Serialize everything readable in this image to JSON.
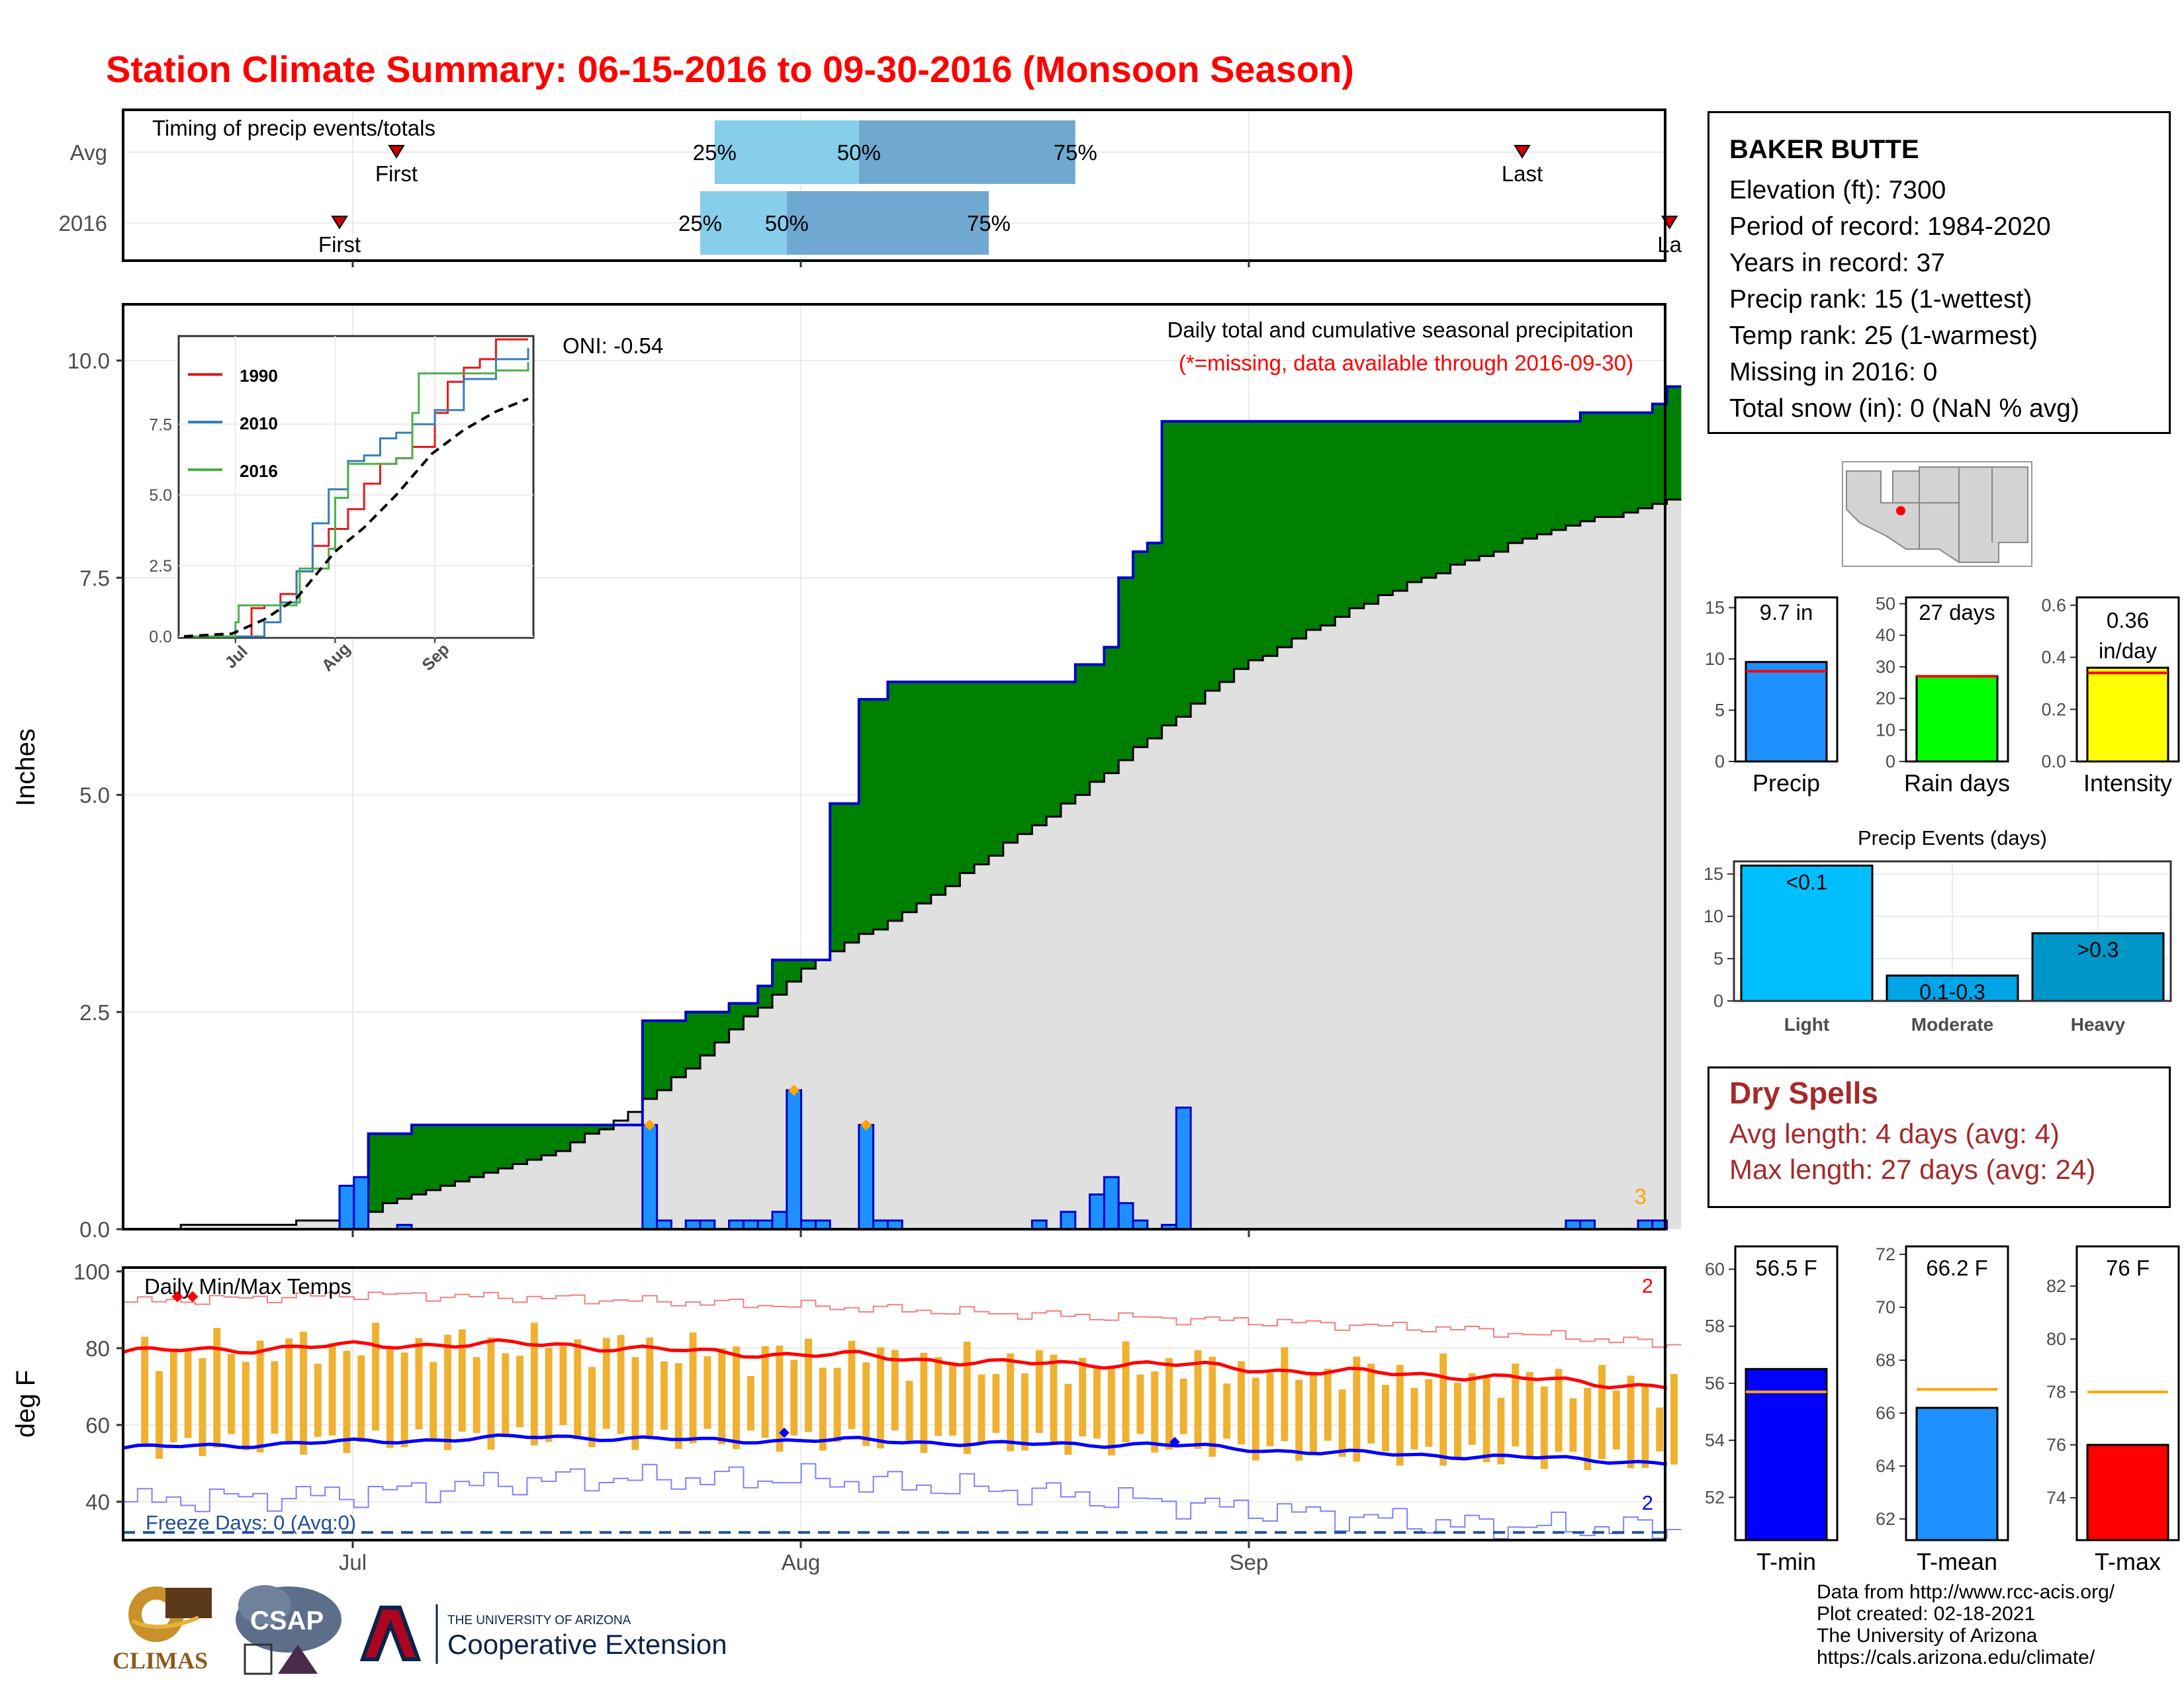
{
  "page": {
    "title": "Station Climate Summary: 06-15-2016 to 09-30-2016 (Monsoon Season)"
  },
  "station": {
    "name": "BAKER BUTTE",
    "lines": [
      "Elevation (ft): 7300",
      "Period of record: 1984-2020",
      "Years in record: 37",
      "Precip rank: 15 (1-wettest)",
      "Temp rank: 25 (1-warmest)",
      "Missing in 2016: 0",
      "Total snow (in): 0 (NaN % avg)"
    ]
  },
  "timing": {
    "heading": "Timing of precip events/totals",
    "rows": [
      {
        "label": "Avg",
        "first": "First",
        "last": "Last",
        "first_date": "2016-06-30",
        "last_date": "2016-09-23",
        "p25": "25%",
        "p50": "50%",
        "p75": "75%",
        "q25": "2016-07-26",
        "q50": "2016-08-05",
        "q75": "2016-08-20"
      },
      {
        "label": "2016",
        "first": "First",
        "last": "La",
        "first_date": "2016-06-30",
        "last_date": "2016-09-30",
        "p25": "25%",
        "p50": "50%",
        "p75": "75%",
        "q25": "2016-07-25",
        "q50": "2016-07-31",
        "q75": "2016-08-14"
      }
    ]
  },
  "precip_chart": {
    "title": "Daily total and cumulative seasonal precipitation",
    "subtitle": "(*=missing, data available through 2016-09-30)",
    "oni": "ONI: -0.54",
    "ylabel": "Inches",
    "yticks": [
      "0.0",
      "2.5",
      "5.0",
      "7.5",
      "10.0"
    ],
    "corner_note": "3",
    "colors": {
      "above_avg": "#008000",
      "below_avg": "#8b5a1a",
      "avg_fill": "#e0e0e0",
      "bars": "#1e90ff",
      "outline": "#0000cd"
    }
  },
  "inset": {
    "legend": [
      "1990",
      "2010",
      "2016"
    ],
    "colors": [
      "#e41a1c",
      "#377eb8",
      "#4daf4a"
    ],
    "yticks": [
      "0.0",
      "2.5",
      "5.0",
      "7.5"
    ],
    "xticks": [
      "Jul",
      "Aug",
      "Sep"
    ]
  },
  "temp_chart": {
    "title": "Daily Min/Max Temps",
    "ylabel": "deg F",
    "yticks": [
      "40",
      "60",
      "80",
      "100"
    ],
    "freeze": "Freeze Days: 0 (Avg:0)",
    "max_count": "2",
    "min_count": "2"
  },
  "x_axis": {
    "ticks": [
      "Jul",
      "Aug",
      "Sep"
    ]
  },
  "summary_bars": [
    {
      "label": "Precip",
      "value_text": "9.7 in",
      "ticks": [
        "0",
        "5",
        "10",
        "15"
      ],
      "color": "#1e90ff"
    },
    {
      "label": "Rain days",
      "value_text": "27 days",
      "ticks": [
        "0",
        "10",
        "20",
        "30",
        "40",
        "50"
      ],
      "color": "#00ff00"
    },
    {
      "label": "Intensity",
      "value_text": "0.36",
      "value_text2": "in/day",
      "ticks": [
        "0.0",
        "0.2",
        "0.4",
        "0.6"
      ],
      "color": "#ffff00"
    }
  ],
  "events": {
    "title": "Precip Events (days)",
    "categories": [
      "Light",
      "Moderate",
      "Heavy"
    ],
    "bar_labels": [
      "<0.1",
      "0.1-0.3",
      ">0.3"
    ],
    "ticks": [
      "0",
      "5",
      "10",
      "15"
    ],
    "colors": [
      "#00bfff",
      "#00a5e8",
      "#0096c8"
    ]
  },
  "dry_spells": {
    "heading": "Dry Spells",
    "avg": "Avg length: 4 days (avg: 4)",
    "max": "Max length: 27 days (avg: 24)"
  },
  "temp_bars": [
    {
      "label": "T-min",
      "value_text": "56.5 F",
      "ticks": [
        "52",
        "54",
        "56",
        "58",
        "60"
      ],
      "color": "#0000ff"
    },
    {
      "label": "T-mean",
      "value_text": "66.2 F",
      "ticks": [
        "62",
        "64",
        "66",
        "68",
        "70",
        "72"
      ],
      "color": "#1e90ff"
    },
    {
      "label": "T-max",
      "value_text": "76 F",
      "ticks": [
        "74",
        "76",
        "78",
        "80",
        "82"
      ],
      "color": "#ff0000"
    }
  ],
  "credits": [
    "Data from http://www.rcc-acis.org/",
    "Plot created: 02-18-2021",
    "The University of Arizona",
    "https://cals.arizona.edu/climate/"
  ],
  "logos": {
    "climas": "CLIMAS",
    "csap": "CSAP",
    "ua_small": "THE UNIVERSITY OF ARIZONA",
    "ua_big": "Cooperative Extension"
  },
  "chart_data": [
    {
      "type": "area",
      "name": "cumulative precipitation",
      "x_range": [
        "2016-06-15",
        "2016-09-30"
      ],
      "ylabel": "Inches",
      "ylim": [
        0,
        10.6
      ],
      "series": [
        {
          "name": "2016 cumulative",
          "x": [
            "2016-06-15",
            "2016-06-30",
            "2016-07-01",
            "2016-07-02",
            "2016-07-05",
            "2016-07-20",
            "2016-07-21",
            "2016-07-24",
            "2016-07-27",
            "2016-07-29",
            "2016-07-30",
            "2016-08-03",
            "2016-08-04",
            "2016-08-05",
            "2016-08-07",
            "2016-08-17",
            "2016-08-20",
            "2016-08-22",
            "2016-08-23",
            "2016-08-24",
            "2016-08-25",
            "2016-08-26",
            "2016-09-23",
            "2016-09-24",
            "2016-09-28",
            "2016-09-29",
            "2016-09-30"
          ],
          "values": [
            0.0,
            0.0,
            0.5,
            1.1,
            1.2,
            1.2,
            2.4,
            2.5,
            2.6,
            2.8,
            3.1,
            4.9,
            4.9,
            6.1,
            6.3,
            6.3,
            6.5,
            6.7,
            7.5,
            7.8,
            7.9,
            9.3,
            9.3,
            9.4,
            9.4,
            9.5,
            9.7
          ]
        },
        {
          "name": "Average cumulative",
          "x": [
            "2016-06-15",
            "2016-06-30",
            "2016-07-05",
            "2016-07-15",
            "2016-07-20",
            "2016-07-25",
            "2016-08-01",
            "2016-08-10",
            "2016-08-20",
            "2016-08-31",
            "2016-09-10",
            "2016-09-20",
            "2016-09-30"
          ],
          "values": [
            0.0,
            0.1,
            0.4,
            0.9,
            1.35,
            2.0,
            3.0,
            3.85,
            5.0,
            6.45,
            7.3,
            7.95,
            8.4
          ]
        }
      ],
      "daily_bars": {
        "x": [
          "2016-06-30",
          "2016-07-01",
          "2016-07-04",
          "2016-07-21",
          "2016-07-22",
          "2016-07-24",
          "2016-07-25",
          "2016-07-27",
          "2016-07-28",
          "2016-07-29",
          "2016-07-30",
          "2016-07-31",
          "2016-08-01",
          "2016-08-02",
          "2016-08-05",
          "2016-08-06",
          "2016-08-07",
          "2016-08-17",
          "2016-08-19",
          "2016-08-21",
          "2016-08-22",
          "2016-08-23",
          "2016-08-24",
          "2016-08-26",
          "2016-08-27",
          "2016-09-23",
          "2016-09-24",
          "2016-09-28",
          "2016-09-29"
        ],
        "values": [
          0.5,
          0.6,
          0.05,
          1.2,
          0.1,
          0.1,
          0.1,
          0.1,
          0.1,
          0.1,
          0.2,
          1.6,
          0.1,
          0.1,
          1.2,
          0.1,
          0.1,
          0.1,
          0.2,
          0.4,
          0.6,
          0.3,
          0.1,
          0.05,
          1.4,
          0.1,
          0.1,
          0.1,
          0.1
        ]
      }
    },
    {
      "type": "line",
      "name": "inset cumulative years",
      "ylim": [
        0,
        10.5
      ],
      "series": [
        {
          "name": "1990",
          "x": [
            "06-15",
            "06-30",
            "07-02",
            "07-06",
            "07-10",
            "07-15",
            "07-20",
            "07-25",
            "07-30",
            "08-05",
            "08-10",
            "08-15",
            "08-20",
            "08-25",
            "09-01",
            "09-05",
            "09-10",
            "09-15",
            "09-20",
            "09-30"
          ],
          "values": [
            0,
            0,
            0,
            1.0,
            1.1,
            1.5,
            2.3,
            3.2,
            3.8,
            4.5,
            5.4,
            6.1,
            6.3,
            6.7,
            7.9,
            9.0,
            9.5,
            9.8,
            10.5,
            10.5
          ]
        },
        {
          "name": "2010",
          "x": [
            "06-15",
            "07-05",
            "07-10",
            "07-15",
            "07-20",
            "07-25",
            "07-30",
            "08-05",
            "08-10",
            "08-15",
            "08-20",
            "08-25",
            "09-01",
            "09-10",
            "09-20",
            "09-30"
          ],
          "values": [
            0,
            0,
            0.5,
            1.2,
            2.3,
            4.0,
            5.2,
            6.2,
            6.4,
            7.0,
            7.2,
            7.5,
            8.0,
            9.1,
            9.8,
            10.2
          ]
        },
        {
          "name": "2016",
          "x": [
            "06-15",
            "06-30",
            "07-01",
            "07-02",
            "07-20",
            "07-21",
            "07-30",
            "08-01",
            "08-05",
            "08-20",
            "08-25",
            "08-27",
            "09-20",
            "09-30"
          ],
          "values": [
            0,
            0,
            0.5,
            1.1,
            1.2,
            2.4,
            3.1,
            4.9,
            6.1,
            6.3,
            7.9,
            9.3,
            9.4,
            9.7
          ]
        },
        {
          "name": "Average",
          "x": [
            "06-15",
            "06-30",
            "07-10",
            "07-20",
            "08-01",
            "08-10",
            "08-20",
            "08-31",
            "09-10",
            "09-20",
            "09-30"
          ],
          "values": [
            0,
            0.1,
            0.6,
            1.35,
            3.0,
            3.85,
            5.0,
            6.45,
            7.3,
            7.95,
            8.4
          ]
        }
      ]
    },
    {
      "type": "line",
      "name": "daily min/max temps",
      "ylabel": "deg F",
      "ylim": [
        30,
        101
      ],
      "series": [
        {
          "name": "avg max",
          "x": [
            "06-15",
            "06-25",
            "07-05",
            "07-15",
            "07-25",
            "08-05",
            "08-15",
            "08-25",
            "09-05",
            "09-15",
            "09-25",
            "09-30"
          ],
          "values": [
            79,
            80,
            81,
            81,
            79,
            78,
            76,
            76,
            74,
            73,
            71,
            70
          ]
        },
        {
          "name": "avg min",
          "x": [
            "06-15",
            "06-25",
            "07-05",
            "07-15",
            "07-25",
            "08-05",
            "08-15",
            "08-25",
            "09-05",
            "09-15",
            "09-25",
            "09-30"
          ],
          "values": [
            54,
            55,
            56,
            57,
            56,
            56,
            55,
            55,
            53,
            52,
            51,
            50
          ]
        },
        {
          "name": "record max",
          "x": [
            "06-15",
            "07-01",
            "07-15",
            "08-01",
            "08-15",
            "09-01",
            "09-15",
            "09-30"
          ],
          "values": [
            92,
            94,
            93,
            91,
            89,
            87,
            85,
            81
          ]
        },
        {
          "name": "record min",
          "x": [
            "06-15",
            "07-01",
            "07-15",
            "08-01",
            "08-15",
            "09-01",
            "09-15",
            "09-30"
          ],
          "values": [
            40,
            42,
            46,
            46,
            43,
            38,
            34,
            33
          ]
        }
      ],
      "freeze_threshold": 32
    },
    {
      "type": "bar",
      "categories": [
        "Precip"
      ],
      "values": [
        9.7
      ],
      "average": [
        8.8
      ],
      "ylim": [
        0,
        16
      ]
    },
    {
      "type": "bar",
      "categories": [
        "Rain days"
      ],
      "values": [
        27
      ],
      "average": [
        27
      ],
      "ylim": [
        0,
        52
      ]
    },
    {
      "type": "bar",
      "categories": [
        "Intensity"
      ],
      "values": [
        0.36
      ],
      "average": [
        0.34
      ],
      "ylim": [
        0,
        0.63
      ]
    },
    {
      "type": "bar",
      "title": "Precip Events (days)",
      "categories": [
        "Light",
        "Moderate",
        "Heavy"
      ],
      "values": [
        16,
        3,
        8
      ],
      "ylim": [
        0,
        16.5
      ]
    },
    {
      "type": "bar",
      "categories": [
        "T-min"
      ],
      "values": [
        56.5
      ],
      "average": [
        55.7
      ],
      "ylim": [
        50.5,
        60.8
      ]
    },
    {
      "type": "bar",
      "categories": [
        "T-mean"
      ],
      "values": [
        66.2
      ],
      "average": [
        66.9
      ],
      "ylim": [
        61.2,
        72.3
      ]
    },
    {
      "type": "bar",
      "categories": [
        "T-max"
      ],
      "values": [
        76
      ],
      "average": [
        78
      ],
      "ylim": [
        72.4,
        83.5
      ]
    }
  ]
}
